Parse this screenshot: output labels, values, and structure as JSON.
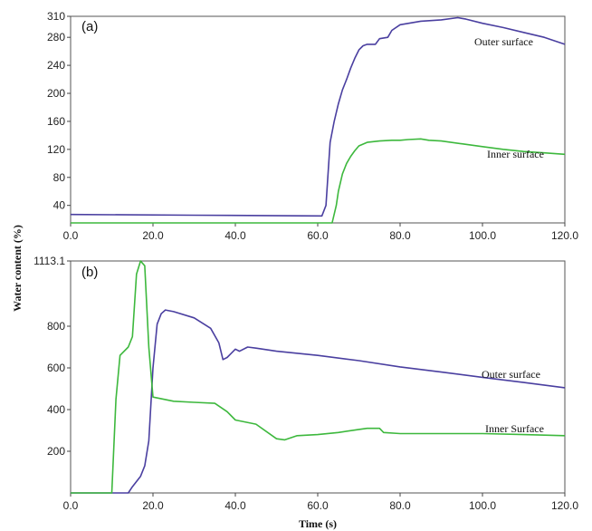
{
  "chart_data": [
    {
      "type": "line",
      "panel_label": "(a)",
      "xlim": [
        0,
        120
      ],
      "ylim": [
        15,
        310
      ],
      "x_ticks": [
        0,
        20,
        40,
        60,
        80,
        100,
        120
      ],
      "x_tick_labels": [
        "0.0",
        "20.0",
        "40.0",
        "60.0",
        "80.0",
        "100.0",
        "120.0"
      ],
      "y_ticks": [
        40,
        80,
        120,
        160,
        200,
        240,
        280,
        310
      ],
      "y_tick_labels": [
        "40",
        "80",
        "120",
        "160",
        "200",
        "240",
        "280",
        "310"
      ],
      "series": [
        {
          "name": "Outer surface",
          "color": "#4a3fa0",
          "points": [
            [
              0,
              27
            ],
            [
              30,
              26
            ],
            [
              61,
              25
            ],
            [
              62,
              40
            ],
            [
              63,
              130
            ],
            [
              64,
              160
            ],
            [
              65,
              185
            ],
            [
              66,
              205
            ],
            [
              67,
              220
            ],
            [
              68,
              236
            ],
            [
              69,
              250
            ],
            [
              70,
              262
            ],
            [
              71,
              268
            ],
            [
              72,
              270
            ],
            [
              74,
              270
            ],
            [
              75,
              278
            ],
            [
              77,
              280
            ],
            [
              78,
              290
            ],
            [
              80,
              298
            ],
            [
              85,
              303
            ],
            [
              90,
              305
            ],
            [
              94,
              308
            ],
            [
              96,
              306
            ],
            [
              100,
              300
            ],
            [
              105,
              294
            ],
            [
              110,
              287
            ],
            [
              115,
              280
            ],
            [
              120,
              270
            ]
          ]
        },
        {
          "name": "Inner surface",
          "color": "#3db83d",
          "points": [
            [
              0,
              15
            ],
            [
              20,
              15
            ],
            [
              40,
              15
            ],
            [
              63.5,
              15
            ],
            [
              64.5,
              40
            ],
            [
              65,
              60
            ],
            [
              66,
              85
            ],
            [
              67,
              100
            ],
            [
              68,
              110
            ],
            [
              69,
              118
            ],
            [
              70,
              125
            ],
            [
              72,
              130
            ],
            [
              75,
              132
            ],
            [
              78,
              133
            ],
            [
              80,
              133
            ],
            [
              82,
              134
            ],
            [
              85,
              135
            ],
            [
              87,
              133
            ],
            [
              90,
              132
            ],
            [
              95,
              128
            ],
            [
              100,
              124
            ],
            [
              105,
              120
            ],
            [
              110,
              117
            ],
            [
              115,
              115
            ],
            [
              120,
              113
            ]
          ]
        }
      ]
    },
    {
      "type": "line",
      "panel_label": "(b)",
      "xlim": [
        0,
        120
      ],
      "ylim": [
        0,
        1113.1
      ],
      "x_ticks": [
        0,
        20,
        40,
        60,
        80,
        100,
        120
      ],
      "x_tick_labels": [
        "0.0",
        "20.0",
        "40.0",
        "60.0",
        "80.0",
        "100.0",
        "120.0"
      ],
      "y_ticks": [
        200,
        400,
        600,
        800,
        1113.1
      ],
      "y_tick_labels": [
        "200",
        "400",
        "600",
        "800",
        "1113.1"
      ],
      "series": [
        {
          "name": "Outer surface",
          "color": "#4a3fa0",
          "points": [
            [
              0,
              0
            ],
            [
              14,
              0
            ],
            [
              15,
              30
            ],
            [
              17,
              80
            ],
            [
              18,
              130
            ],
            [
              19,
              250
            ],
            [
              20,
              600
            ],
            [
              21,
              810
            ],
            [
              22,
              860
            ],
            [
              23,
              878
            ],
            [
              25,
              870
            ],
            [
              30,
              840
            ],
            [
              34,
              790
            ],
            [
              36,
              720
            ],
            [
              37,
              640
            ],
            [
              38,
              650
            ],
            [
              40,
              690
            ],
            [
              41,
              680
            ],
            [
              43,
              700
            ],
            [
              45,
              695
            ],
            [
              50,
              680
            ],
            [
              60,
              660
            ],
            [
              70,
              635
            ],
            [
              80,
              605
            ],
            [
              90,
              580
            ],
            [
              100,
              555
            ],
            [
              110,
              530
            ],
            [
              120,
              505
            ]
          ]
        },
        {
          "name": "Inner Surface",
          "color": "#3db83d",
          "points": [
            [
              0,
              0
            ],
            [
              10,
              0
            ],
            [
              11,
              450
            ],
            [
              12,
              660
            ],
            [
              14,
              700
            ],
            [
              15,
              750
            ],
            [
              16,
              1050
            ],
            [
              17,
              1113
            ],
            [
              18,
              1090
            ],
            [
              19,
              700
            ],
            [
              20,
              460
            ],
            [
              25,
              440
            ],
            [
              30,
              435
            ],
            [
              35,
              430
            ],
            [
              38,
              390
            ],
            [
              40,
              350
            ],
            [
              45,
              330
            ],
            [
              50,
              260
            ],
            [
              52,
              255
            ],
            [
              55,
              275
            ],
            [
              60,
              280
            ],
            [
              65,
              290
            ],
            [
              70,
              305
            ],
            [
              72,
              310
            ],
            [
              75,
              310
            ],
            [
              76,
              290
            ],
            [
              80,
              285
            ],
            [
              90,
              285
            ],
            [
              100,
              285
            ],
            [
              110,
              280
            ],
            [
              120,
              275
            ]
          ]
        }
      ]
    }
  ],
  "annotations": {
    "a_outer": "Outer surface",
    "a_inner": "Inner surface",
    "b_outer": "Outer surface",
    "b_inner": "Inner Surface"
  },
  "ylabel": "Water content (%)",
  "xlabel": "Time (s)"
}
